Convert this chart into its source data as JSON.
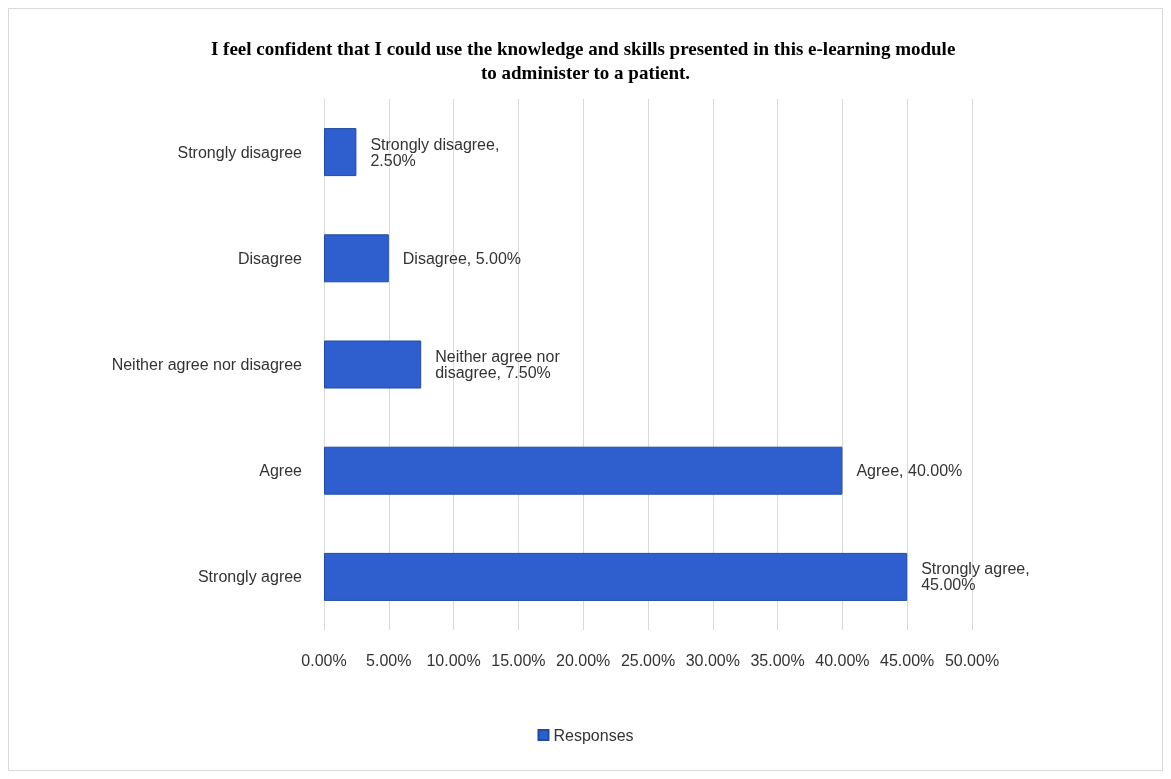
{
  "chart_data": {
    "type": "bar",
    "orientation": "horizontal",
    "title": "I feel confident that I could use the knowledge and skills presented in this e-learning module to administer to a patient.",
    "categories": [
      "Strongly disagree",
      "Disagree",
      "Neither agree nor disagree",
      "Agree",
      "Strongly agree"
    ],
    "series": [
      {
        "name": "Responses",
        "color": "#2f5fcf",
        "values": [
          2.5,
          5,
          7.5,
          40,
          45
        ],
        "value_labels": [
          "Strongly disagree, 2.50%",
          "Disagree, 5.00%",
          "Neither agree nor disagree, 7.50%",
          "Agree, 40.00%",
          "Strongly agree, 45.00%"
        ]
      }
    ],
    "xlim": [
      0,
      50
    ],
    "xticks": [
      {
        "value": 0,
        "label": "0.00%"
      },
      {
        "value": 5,
        "label": "5.00%"
      },
      {
        "value": 10,
        "label": "10.00%"
      },
      {
        "value": 15,
        "label": "15.00%"
      },
      {
        "value": 20,
        "label": "20.00%"
      },
      {
        "value": 25,
        "label": "25.00%"
      },
      {
        "value": 30,
        "label": "30.00%"
      },
      {
        "value": 35,
        "label": "35.00%"
      },
      {
        "value": 40,
        "label": "40.00%"
      },
      {
        "value": 45,
        "label": "45.00%"
      },
      {
        "value": 50,
        "label": "50.00%"
      }
    ],
    "grid": "x",
    "legend": "bottom"
  }
}
